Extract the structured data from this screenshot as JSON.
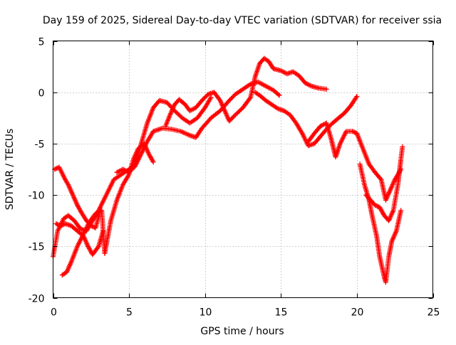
{
  "chart_data": {
    "type": "scatter",
    "title": "Day 159 of 2025, Sidereal Day-to-day VTEC variation (SDTVAR) for receiver ssia",
    "xlabel": "GPS time / hours",
    "ylabel": "SDTVAR / TECUs",
    "xlim": [
      0,
      25
    ],
    "ylim": [
      -20,
      5
    ],
    "xticks": [
      0,
      5,
      10,
      15,
      20,
      25
    ],
    "yticks": [
      -20,
      -15,
      -10,
      -5,
      0,
      5
    ],
    "xtick_labels": [
      "0",
      "5",
      "10",
      "15",
      "20",
      "25"
    ],
    "ytick_labels": [
      "-20",
      "-15",
      "-10",
      "-5",
      "0",
      "5"
    ],
    "grid": true,
    "marker": "+",
    "point_color": "#ff0000",
    "series": [
      {
        "points": [
          [
            0.0,
            -16.0
          ],
          [
            0.3,
            -13.5
          ],
          [
            0.7,
            -12.3
          ],
          [
            1.0,
            -12.0
          ],
          [
            1.4,
            -12.5
          ],
          [
            1.8,
            -13.3
          ],
          [
            2.2,
            -13.5
          ],
          [
            2.6,
            -12.5
          ],
          [
            3.0,
            -11.5
          ],
          [
            3.5,
            -10.0
          ],
          [
            4.0,
            -8.5
          ],
          [
            4.5,
            -8.0
          ],
          [
            5.0,
            -7.5
          ],
          [
            5.4,
            -7.0
          ],
          [
            5.8,
            -5.0
          ],
          [
            6.2,
            -3.0
          ],
          [
            6.6,
            -1.5
          ],
          [
            7.0,
            -0.8
          ],
          [
            7.5,
            -1.0
          ],
          [
            8.0,
            -1.8
          ],
          [
            8.5,
            -2.5
          ],
          [
            9.0,
            -3.0
          ],
          [
            9.5,
            -2.5
          ],
          [
            10.0,
            -1.5
          ],
          [
            10.4,
            -0.5
          ]
        ]
      },
      {
        "points": [
          [
            0.1,
            -7.5
          ],
          [
            0.4,
            -7.3
          ],
          [
            0.8,
            -8.5
          ],
          [
            1.0,
            -9.0
          ],
          [
            1.3,
            -10.0
          ],
          [
            1.6,
            -11.0
          ],
          [
            1.9,
            -11.8
          ],
          [
            2.2,
            -12.5
          ],
          [
            2.5,
            -13.0
          ],
          [
            2.8,
            -13.2
          ],
          [
            3.1,
            -11.5
          ]
        ]
      },
      {
        "points": [
          [
            0.2,
            -12.8
          ],
          [
            0.5,
            -13.0
          ],
          [
            0.8,
            -12.8
          ],
          [
            1.2,
            -13.0
          ],
          [
            1.6,
            -13.5
          ],
          [
            2.0,
            -14.0
          ],
          [
            2.3,
            -15.0
          ],
          [
            2.6,
            -15.8
          ],
          [
            3.0,
            -15.0
          ],
          [
            3.3,
            -13.5
          ]
        ]
      },
      {
        "points": [
          [
            0.6,
            -17.8
          ],
          [
            0.9,
            -17.5
          ],
          [
            1.2,
            -16.5
          ],
          [
            1.6,
            -15.0
          ],
          [
            2.0,
            -13.8
          ],
          [
            2.4,
            -12.6
          ],
          [
            2.8,
            -11.8
          ],
          [
            3.2,
            -11.5
          ],
          [
            3.4,
            -15.7
          ],
          [
            3.8,
            -12.5
          ],
          [
            4.2,
            -10.5
          ],
          [
            4.6,
            -9.0
          ],
          [
            5.0,
            -8.0
          ],
          [
            5.3,
            -6.5
          ],
          [
            5.6,
            -5.5
          ],
          [
            6.0,
            -5.0
          ],
          [
            6.3,
            -6.0
          ],
          [
            6.6,
            -6.8
          ]
        ]
      },
      {
        "points": [
          [
            4.2,
            -7.8
          ],
          [
            4.6,
            -7.5
          ],
          [
            5.0,
            -7.8
          ],
          [
            5.4,
            -7.2
          ],
          [
            5.8,
            -6.0
          ],
          [
            6.2,
            -4.8
          ],
          [
            6.6,
            -3.8
          ],
          [
            7.2,
            -3.5
          ],
          [
            7.8,
            -3.6
          ],
          [
            8.4,
            -3.8
          ],
          [
            9.0,
            -4.2
          ],
          [
            9.4,
            -4.4
          ],
          [
            9.8,
            -3.5
          ],
          [
            10.4,
            -2.5
          ],
          [
            11.0,
            -1.8
          ],
          [
            11.6,
            -0.8
          ],
          [
            12.0,
            -0.2
          ],
          [
            12.5,
            0.3
          ],
          [
            13.0,
            0.8
          ],
          [
            13.5,
            1.0
          ],
          [
            14.0,
            0.6
          ],
          [
            14.5,
            0.2
          ],
          [
            14.9,
            -0.3
          ]
        ]
      },
      {
        "points": [
          [
            7.4,
            -3.3
          ],
          [
            7.7,
            -2.2
          ],
          [
            8.0,
            -1.2
          ],
          [
            8.3,
            -0.7
          ],
          [
            8.7,
            -1.2
          ],
          [
            9.0,
            -1.8
          ],
          [
            9.4,
            -1.5
          ],
          [
            9.8,
            -0.8
          ],
          [
            10.2,
            -0.2
          ],
          [
            10.6,
            0.0
          ],
          [
            11.0,
            -0.8
          ],
          [
            11.3,
            -1.8
          ],
          [
            11.6,
            -2.8
          ],
          [
            12.0,
            -2.2
          ],
          [
            12.5,
            -1.5
          ],
          [
            13.0,
            -0.5
          ],
          [
            13.3,
            1.5
          ],
          [
            13.6,
            2.8
          ],
          [
            13.9,
            3.3
          ],
          [
            14.2,
            3.0
          ],
          [
            14.5,
            2.3
          ],
          [
            15.0,
            2.1
          ],
          [
            15.4,
            1.8
          ],
          [
            15.8,
            2.0
          ],
          [
            16.2,
            1.6
          ],
          [
            16.6,
            0.9
          ],
          [
            17.0,
            0.6
          ],
          [
            17.5,
            0.4
          ],
          [
            18.0,
            0.3
          ]
        ]
      },
      {
        "points": [
          [
            13.3,
            0.0
          ],
          [
            13.6,
            -0.3
          ],
          [
            14.0,
            -0.8
          ],
          [
            14.4,
            -1.2
          ],
          [
            14.8,
            -1.6
          ],
          [
            15.2,
            -1.8
          ],
          [
            15.6,
            -2.2
          ],
          [
            16.0,
            -3.0
          ],
          [
            16.4,
            -4.0
          ],
          [
            16.8,
            -5.2
          ],
          [
            17.2,
            -5.0
          ],
          [
            17.6,
            -4.3
          ],
          [
            18.0,
            -3.6
          ],
          [
            18.4,
            -3.0
          ],
          [
            18.8,
            -2.5
          ],
          [
            19.2,
            -2.0
          ],
          [
            19.6,
            -1.3
          ],
          [
            20.0,
            -0.4
          ]
        ]
      },
      {
        "points": [
          [
            16.8,
            -4.8
          ],
          [
            17.2,
            -4.0
          ],
          [
            17.6,
            -3.3
          ],
          [
            18.0,
            -3.0
          ],
          [
            18.3,
            -4.5
          ],
          [
            18.6,
            -6.3
          ],
          [
            18.9,
            -5.0
          ],
          [
            19.3,
            -3.8
          ],
          [
            19.7,
            -3.8
          ],
          [
            20.0,
            -4.0
          ],
          [
            20.4,
            -5.5
          ],
          [
            20.8,
            -7.0
          ],
          [
            21.2,
            -7.8
          ],
          [
            21.6,
            -8.5
          ],
          [
            21.9,
            -10.5
          ],
          [
            22.2,
            -9.5
          ],
          [
            22.5,
            -8.5
          ],
          [
            22.9,
            -7.5
          ]
        ]
      },
      {
        "points": [
          [
            20.2,
            -7.0
          ],
          [
            20.5,
            -9.0
          ],
          [
            20.8,
            -10.5
          ],
          [
            21.0,
            -12.0
          ],
          [
            21.3,
            -14.0
          ],
          [
            21.5,
            -16.0
          ],
          [
            21.8,
            -18.0
          ],
          [
            21.9,
            -18.5
          ],
          [
            22.1,
            -16.0
          ],
          [
            22.3,
            -14.5
          ],
          [
            22.6,
            -13.5
          ],
          [
            22.9,
            -11.5
          ]
        ]
      },
      {
        "points": [
          [
            20.6,
            -10.0
          ],
          [
            20.9,
            -10.5
          ],
          [
            21.2,
            -11.0
          ],
          [
            21.5,
            -11.2
          ],
          [
            21.8,
            -12.0
          ],
          [
            22.1,
            -12.5
          ],
          [
            22.4,
            -11.5
          ],
          [
            22.7,
            -9.0
          ],
          [
            22.9,
            -6.5
          ],
          [
            23.0,
            -5.3
          ]
        ]
      }
    ]
  }
}
